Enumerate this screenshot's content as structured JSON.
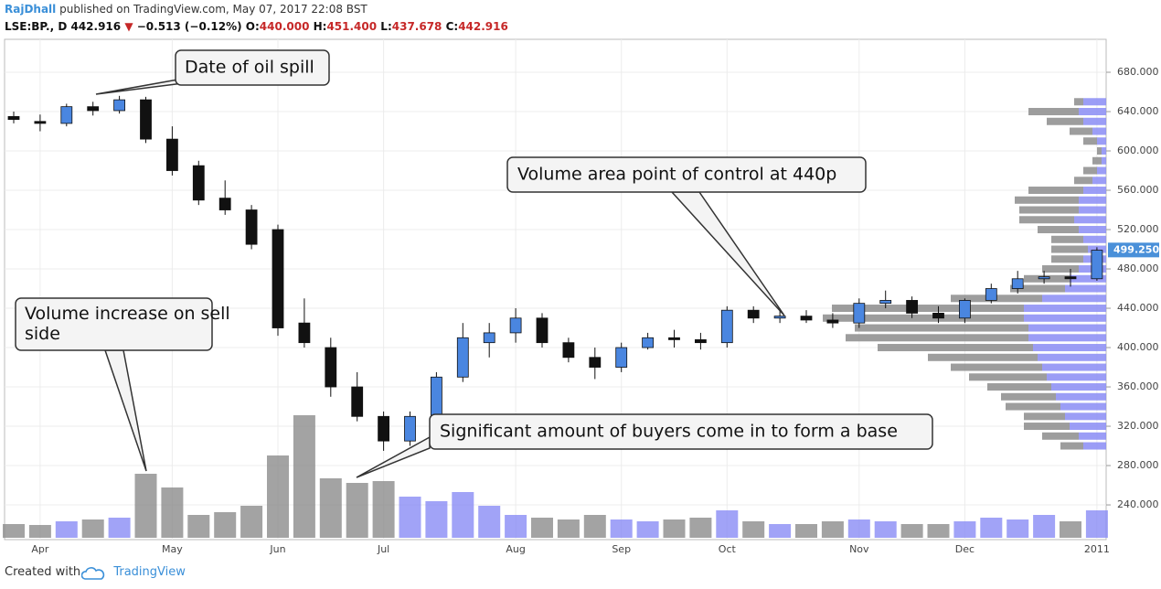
{
  "header": {
    "author": "RajDhall",
    "published": "published on TradingView.com, May 07, 2017 22:08 BST",
    "symbol": "LSE:BP., D",
    "price": "442.916",
    "arrow": "▼",
    "change": "−0.513 (−0.12%)",
    "open_label": "O:",
    "open": "440.000",
    "high_label": "H:",
    "high": "451.400",
    "low_label": "L:",
    "low": "437.678",
    "close_label": "C:",
    "close": "442.916"
  },
  "footer": {
    "created": "Created with",
    "brand": "TradingView"
  },
  "chart_data": {
    "type": "candlestick",
    "categories": [
      null,
      "Apr",
      null,
      null,
      null,
      null,
      "May",
      null,
      null,
      null,
      "Jun",
      null,
      null,
      null,
      "Jul",
      null,
      null,
      null,
      null,
      "Aug",
      null,
      null,
      null,
      "Sep",
      null,
      null,
      null,
      "Oct",
      null,
      null,
      null,
      null,
      "Nov",
      null,
      null,
      null,
      "Dec",
      null,
      null,
      null,
      null,
      "2011"
    ],
    "open": [
      635,
      630,
      628,
      645,
      641,
      652,
      612,
      585,
      552,
      540,
      520,
      425,
      400,
      360,
      330,
      305,
      330,
      370,
      405,
      415,
      430,
      405,
      390,
      380,
      400,
      410,
      408,
      405,
      438,
      430,
      432,
      428,
      425,
      445,
      448,
      435,
      430,
      448,
      460,
      470,
      472,
      470
    ],
    "high": [
      640,
      637,
      648,
      650,
      656,
      655,
      625,
      590,
      570,
      545,
      525,
      450,
      410,
      375,
      335,
      335,
      375,
      425,
      425,
      440,
      435,
      410,
      400,
      405,
      415,
      418,
      415,
      442,
      442,
      440,
      438,
      435,
      450,
      458,
      452,
      442,
      450,
      465,
      478,
      478,
      480,
      502
    ],
    "low": [
      628,
      620,
      625,
      636,
      638,
      608,
      575,
      545,
      535,
      500,
      412,
      400,
      350,
      325,
      295,
      300,
      325,
      365,
      390,
      405,
      400,
      385,
      368,
      375,
      398,
      400,
      398,
      400,
      425,
      425,
      425,
      420,
      420,
      440,
      430,
      425,
      425,
      445,
      455,
      465,
      462,
      468
    ],
    "close": [
      632,
      628,
      645,
      641,
      652,
      612,
      580,
      550,
      540,
      505,
      420,
      405,
      360,
      330,
      305,
      330,
      370,
      410,
      415,
      430,
      405,
      390,
      380,
      400,
      410,
      408,
      405,
      438,
      430,
      432,
      428,
      425,
      445,
      448,
      435,
      430,
      448,
      460,
      470,
      472,
      470,
      499
    ],
    "volume": [
      15,
      14,
      18,
      20,
      22,
      70,
      55,
      25,
      28,
      35,
      90,
      134,
      65,
      60,
      62,
      45,
      40,
      50,
      35,
      25,
      22,
      20,
      25,
      20,
      18,
      20,
      22,
      30,
      18,
      15,
      15,
      18,
      20,
      18,
      15,
      15,
      18,
      22,
      20,
      25,
      18,
      30
    ],
    "up_color": "#4a86e0",
    "down_color": "#111111",
    "volume_up_color": "#8a8cf5",
    "volume_down_color": "#8c8c8c",
    "volume_profile": {
      "levels": [
        300,
        310,
        320,
        330,
        340,
        350,
        360,
        370,
        380,
        390,
        400,
        410,
        420,
        430,
        440,
        450,
        460,
        470,
        480,
        490,
        500,
        510,
        520,
        530,
        540,
        550,
        560,
        570,
        580,
        590,
        600,
        610,
        620,
        630,
        640,
        650
      ],
      "up": [
        25,
        30,
        40,
        45,
        50,
        55,
        60,
        65,
        70,
        75,
        80,
        85,
        85,
        90,
        90,
        70,
        45,
        40,
        30,
        25,
        20,
        25,
        30,
        35,
        30,
        30,
        25,
        15,
        10,
        5,
        5,
        10,
        15,
        25,
        30,
        25
      ],
      "down": [
        25,
        40,
        50,
        45,
        60,
        60,
        70,
        85,
        100,
        120,
        170,
        200,
        190,
        220,
        210,
        100,
        60,
        50,
        40,
        35,
        40,
        35,
        45,
        60,
        65,
        70,
        60,
        20,
        15,
        10,
        5,
        15,
        25,
        40,
        55,
        10
      ],
      "up_color": "#8a8cf5",
      "down_color": "#8c8c8c"
    },
    "ylim": [
      204.7,
      713.5
    ],
    "yticks": [
      {
        "value": 240,
        "label": "240.000"
      },
      {
        "value": 280,
        "label": "280.000"
      },
      {
        "value": 320,
        "label": "320.000"
      },
      {
        "value": 360,
        "label": "360.000"
      },
      {
        "value": 400,
        "label": "400.000"
      },
      {
        "value": 440,
        "label": "440.000"
      },
      {
        "value": 480,
        "label": "480.000"
      },
      {
        "value": 520,
        "label": "520.000"
      },
      {
        "value": 560,
        "label": "560.000"
      },
      {
        "value": 600,
        "label": "600.000"
      },
      {
        "value": 640,
        "label": "640.000"
      },
      {
        "value": 680,
        "label": "680.000"
      }
    ],
    "last_price": {
      "value": 499.25,
      "label": "499.250"
    },
    "grid": true,
    "annotations": [
      "Date of oil spill",
      "Volume area point of control at 440p",
      "Volume increase on sell side",
      "Significant amount of buyers come in to form a base"
    ]
  }
}
